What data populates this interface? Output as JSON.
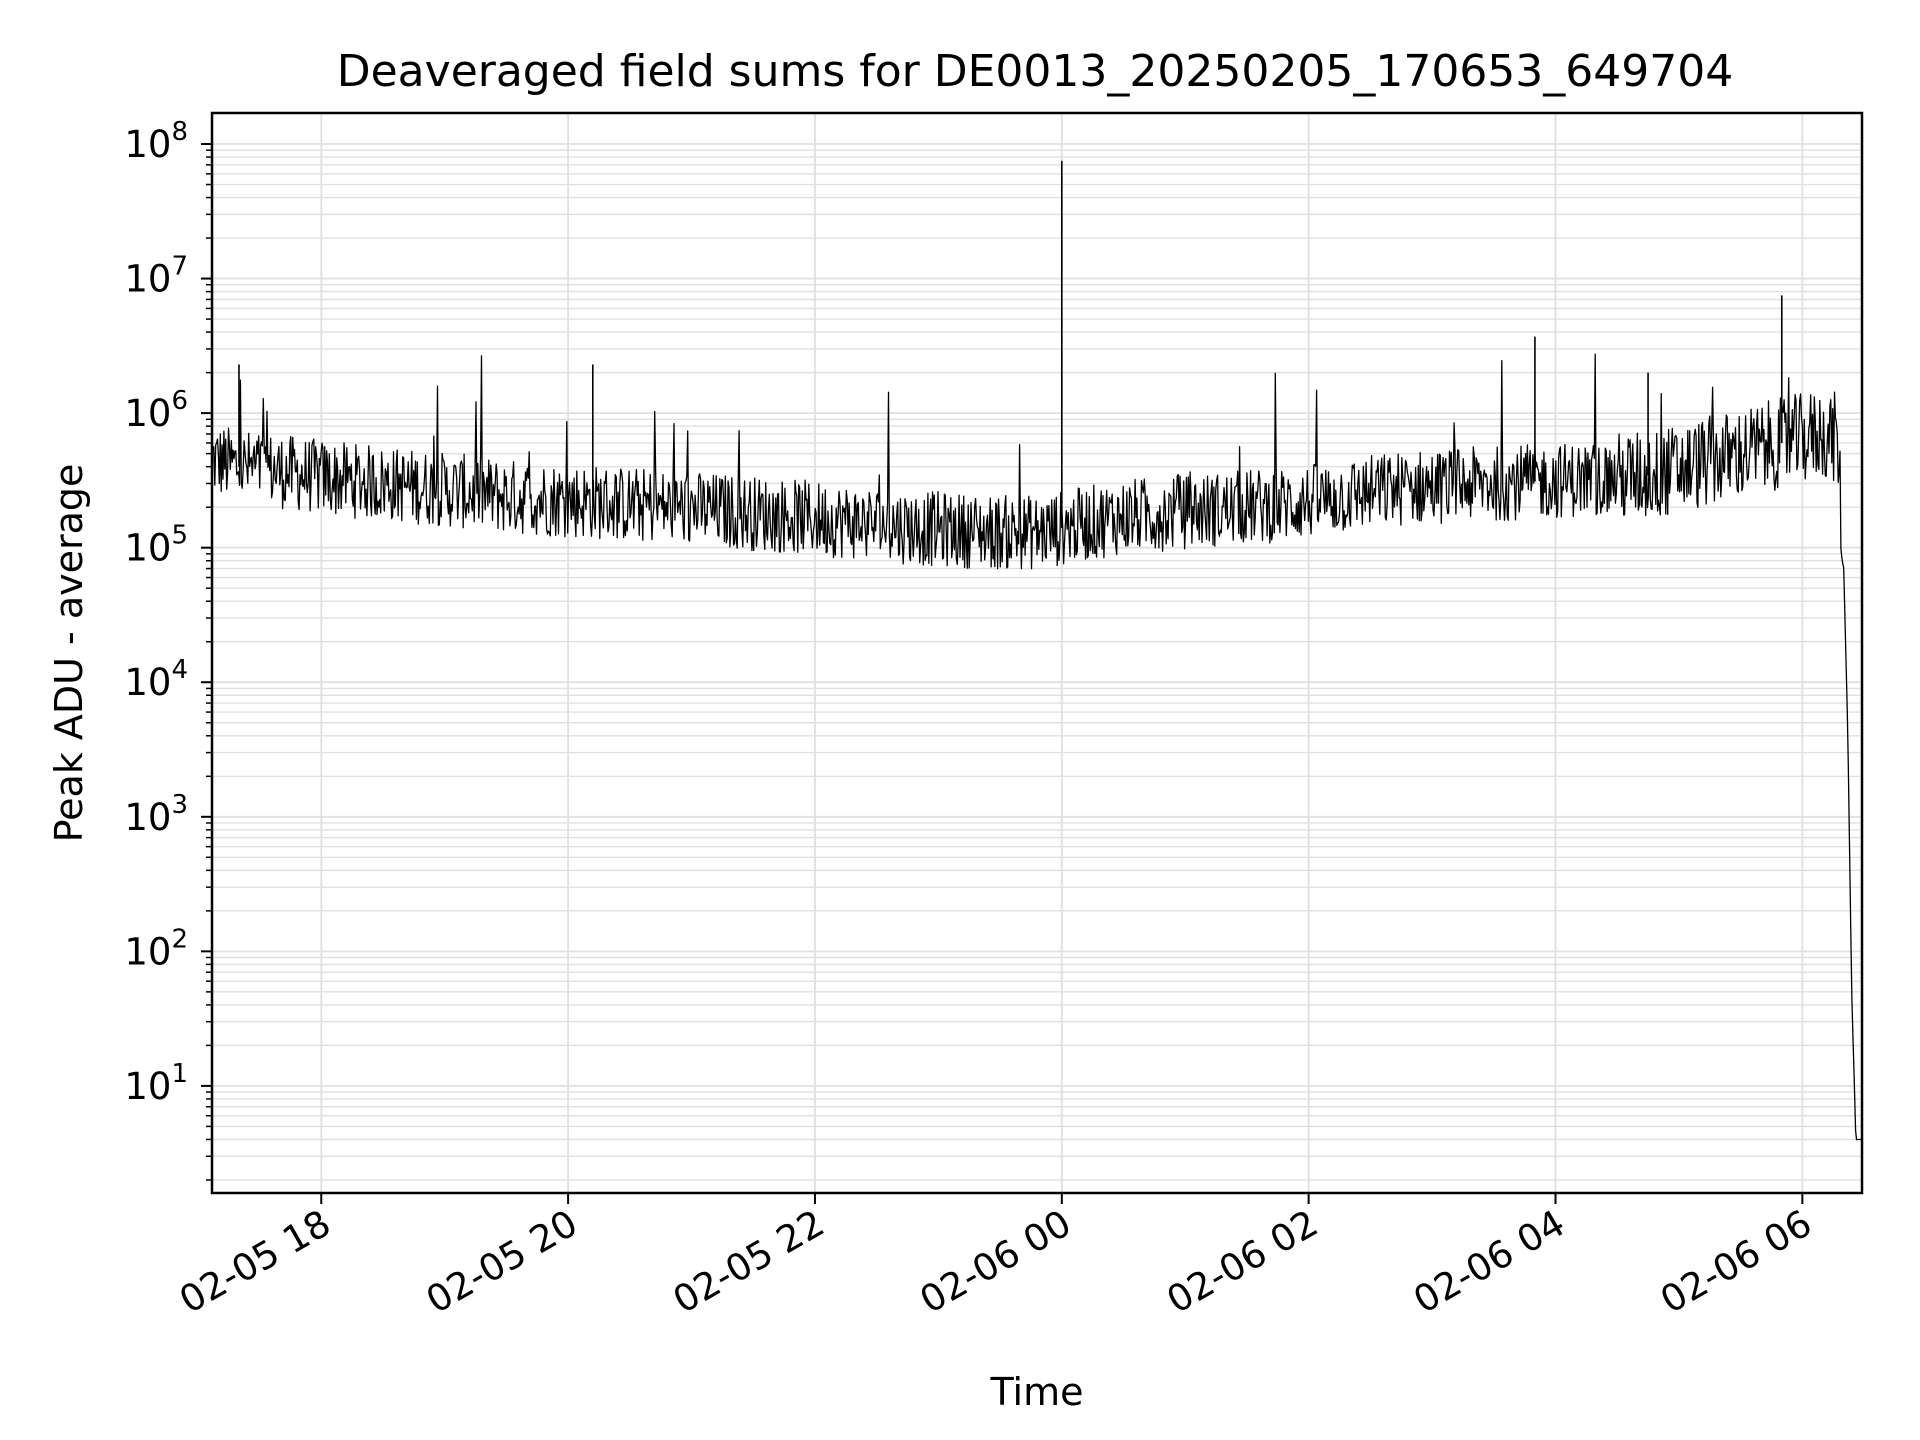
{
  "chart_data": {
    "type": "line",
    "title": "Deaveraged field sums for DE0013_20250205_170653_649704",
    "xlabel": "Time",
    "ylabel": "Peak ADU - average",
    "yscale": "log",
    "ylim": [
      1.6,
      170000000
    ],
    "xlim": [
      "2025-02-05T17:06:53",
      "2025-02-06T06:29:00"
    ],
    "x_ticks": [
      {
        "t": "2025-02-05T18:00",
        "label": "02-05 18"
      },
      {
        "t": "2025-02-05T20:00",
        "label": "02-05 20"
      },
      {
        "t": "2025-02-05T22:00",
        "label": "02-05 22"
      },
      {
        "t": "2025-02-06T00:00",
        "label": "02-06 00"
      },
      {
        "t": "2025-02-06T02:00",
        "label": "02-06 02"
      },
      {
        "t": "2025-02-06T04:00",
        "label": "02-06 04"
      },
      {
        "t": "2025-02-06T06:00",
        "label": "02-06 06"
      }
    ],
    "y_ticks": [
      {
        "value": 10,
        "base": "10",
        "exp": "1"
      },
      {
        "value": 100,
        "base": "10",
        "exp": "2"
      },
      {
        "value": 1000,
        "base": "10",
        "exp": "3"
      },
      {
        "value": 10000,
        "base": "10",
        "exp": "4"
      },
      {
        "value": 100000,
        "base": "10",
        "exp": "5"
      },
      {
        "value": 1000000,
        "base": "10",
        "exp": "6"
      },
      {
        "value": 10000000,
        "base": "10",
        "exp": "7"
      },
      {
        "value": 100000000,
        "base": "10",
        "exp": "8"
      }
    ],
    "grid": true,
    "line_color": "#000000",
    "grid_color": "#e0e0e0",
    "series": [
      {
        "x": [
          "2025-02-05T17:07",
          "2025-02-05T17:20",
          "2025-02-05T17:35",
          "2025-02-05T17:50",
          "2025-02-05T18:10",
          "2025-02-05T18:30",
          "2025-02-05T18:50",
          "2025-02-05T19:10",
          "2025-02-05T19:30",
          "2025-02-05T19:50",
          "2025-02-05T20:10",
          "2025-02-05T20:30",
          "2025-02-05T20:50",
          "2025-02-05T21:10",
          "2025-02-05T21:30",
          "2025-02-05T21:50",
          "2025-02-05T22:10",
          "2025-02-05T22:30",
          "2025-02-05T22:50",
          "2025-02-05T23:10",
          "2025-02-05T23:30",
          "2025-02-05T23:50",
          "2025-02-06T00:10",
          "2025-02-06T00:30",
          "2025-02-06T00:50",
          "2025-02-06T01:10",
          "2025-02-06T01:30",
          "2025-02-06T01:50",
          "2025-02-06T02:10",
          "2025-02-06T02:30",
          "2025-02-06T02:50",
          "2025-02-06T03:10",
          "2025-02-06T03:30",
          "2025-02-06T03:50",
          "2025-02-06T04:10",
          "2025-02-06T04:30",
          "2025-02-06T04:50",
          "2025-02-06T05:10",
          "2025-02-06T05:30",
          "2025-02-06T05:50",
          "2025-02-06T06:10",
          "2025-02-06T06:17",
          "2025-02-06T06:20",
          "2025-02-06T06:22",
          "2025-02-06T06:24",
          "2025-02-06T06:26",
          "2025-02-06T06:28",
          "2025-02-06T06:29"
        ],
        "values": [
          450000,
          400000,
          380000,
          350000,
          320000,
          300000,
          280000,
          260000,
          240000,
          230000,
          220000,
          210000,
          200000,
          190000,
          180000,
          170000,
          160000,
          150000,
          140000,
          135000,
          130000,
          130000,
          150000,
          170000,
          180000,
          190000,
          200000,
          210000,
          230000,
          260000,
          280000,
          290000,
          300000,
          310000,
          320000,
          330000,
          350000,
          420000,
          500000,
          600000,
          700000,
          650000,
          80000,
          5000,
          50,
          4,
          4,
          4
        ],
        "spikes": [
          {
            "x": "2025-02-05T17:20",
            "value": 2300000
          },
          {
            "x": "2025-02-05T20:12",
            "value": 2300000
          },
          {
            "x": "2025-02-06T00:00",
            "value": 75000000
          },
          {
            "x": "2025-02-06T03:50",
            "value": 3700000
          },
          {
            "x": "2025-02-06T04:45",
            "value": 2000000
          },
          {
            "x": "2025-02-06T05:50",
            "value": 7500000
          }
        ]
      }
    ]
  }
}
